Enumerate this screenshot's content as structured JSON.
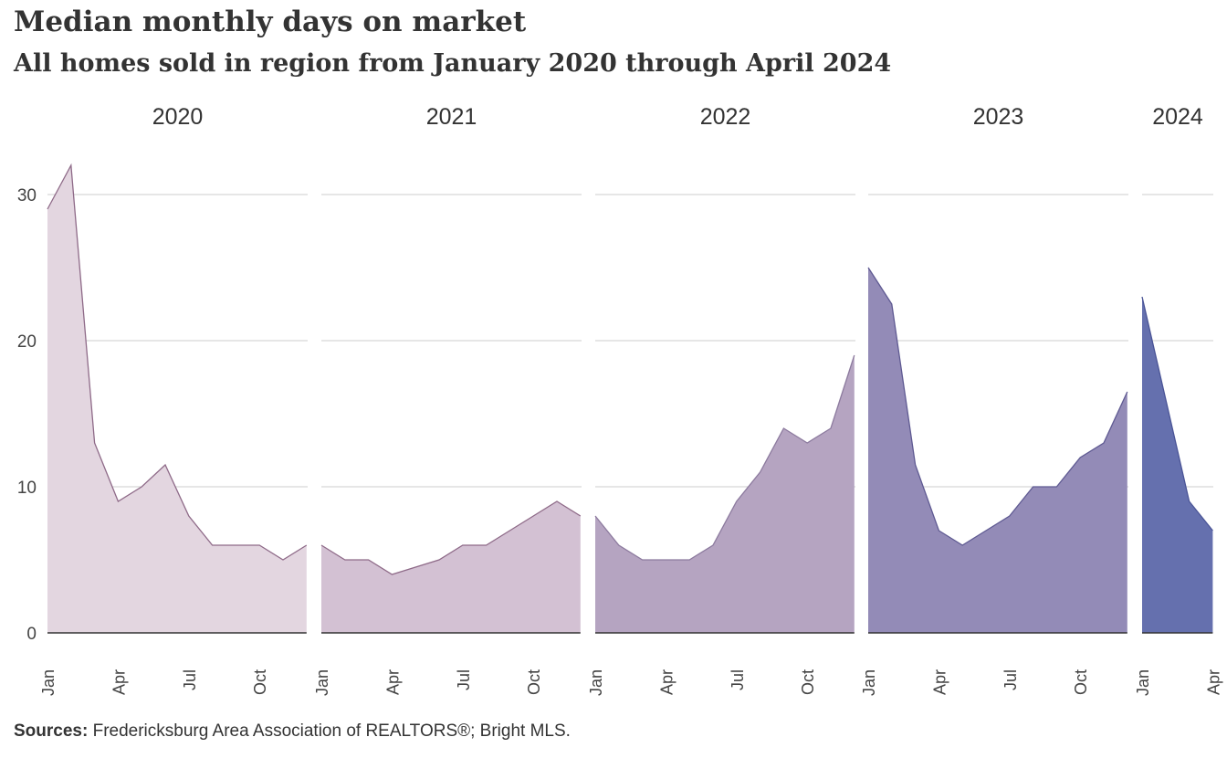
{
  "title": "Median monthly days on market",
  "subtitle": "All homes sold in region from January 2020 through April 2024",
  "source": {
    "label": "Sources:",
    "text": " Fredericksburg  Area Association of REALTORS®;  Bright MLS."
  },
  "chart_data": {
    "type": "area",
    "ylim": [
      0,
      32
    ],
    "yticks": [
      0,
      10,
      20,
      30
    ],
    "grid": true,
    "month_tick_labels": [
      "Jan",
      "Apr",
      "Jul",
      "Oct"
    ],
    "panels": [
      {
        "year": "2020",
        "color": "#e3d6e0",
        "line_color": "#8e6a88",
        "values": [
          29,
          32,
          13,
          9,
          10,
          11.5,
          8,
          6,
          6,
          6,
          5,
          6
        ]
      },
      {
        "year": "2021",
        "color": "#d3c1d3",
        "line_color": "#8e6a88",
        "values": [
          6,
          5,
          5,
          4,
          4.5,
          5,
          6,
          6,
          7,
          8,
          9,
          8
        ]
      },
      {
        "year": "2022",
        "color": "#b5a4c1",
        "line_color": "#8c7a9e",
        "values": [
          8,
          6,
          5,
          5,
          5,
          6,
          9,
          11,
          14,
          13,
          14,
          19
        ]
      },
      {
        "year": "2023",
        "color": "#938bb7",
        "line_color": "#5f5a92",
        "values": [
          25,
          22.5,
          11.5,
          7,
          6,
          7,
          8,
          10,
          10,
          12,
          13,
          16.5
        ]
      },
      {
        "year": "2024",
        "color": "#6570ae",
        "line_color": "#4a5496",
        "values": [
          23,
          16,
          9,
          7
        ]
      }
    ]
  }
}
